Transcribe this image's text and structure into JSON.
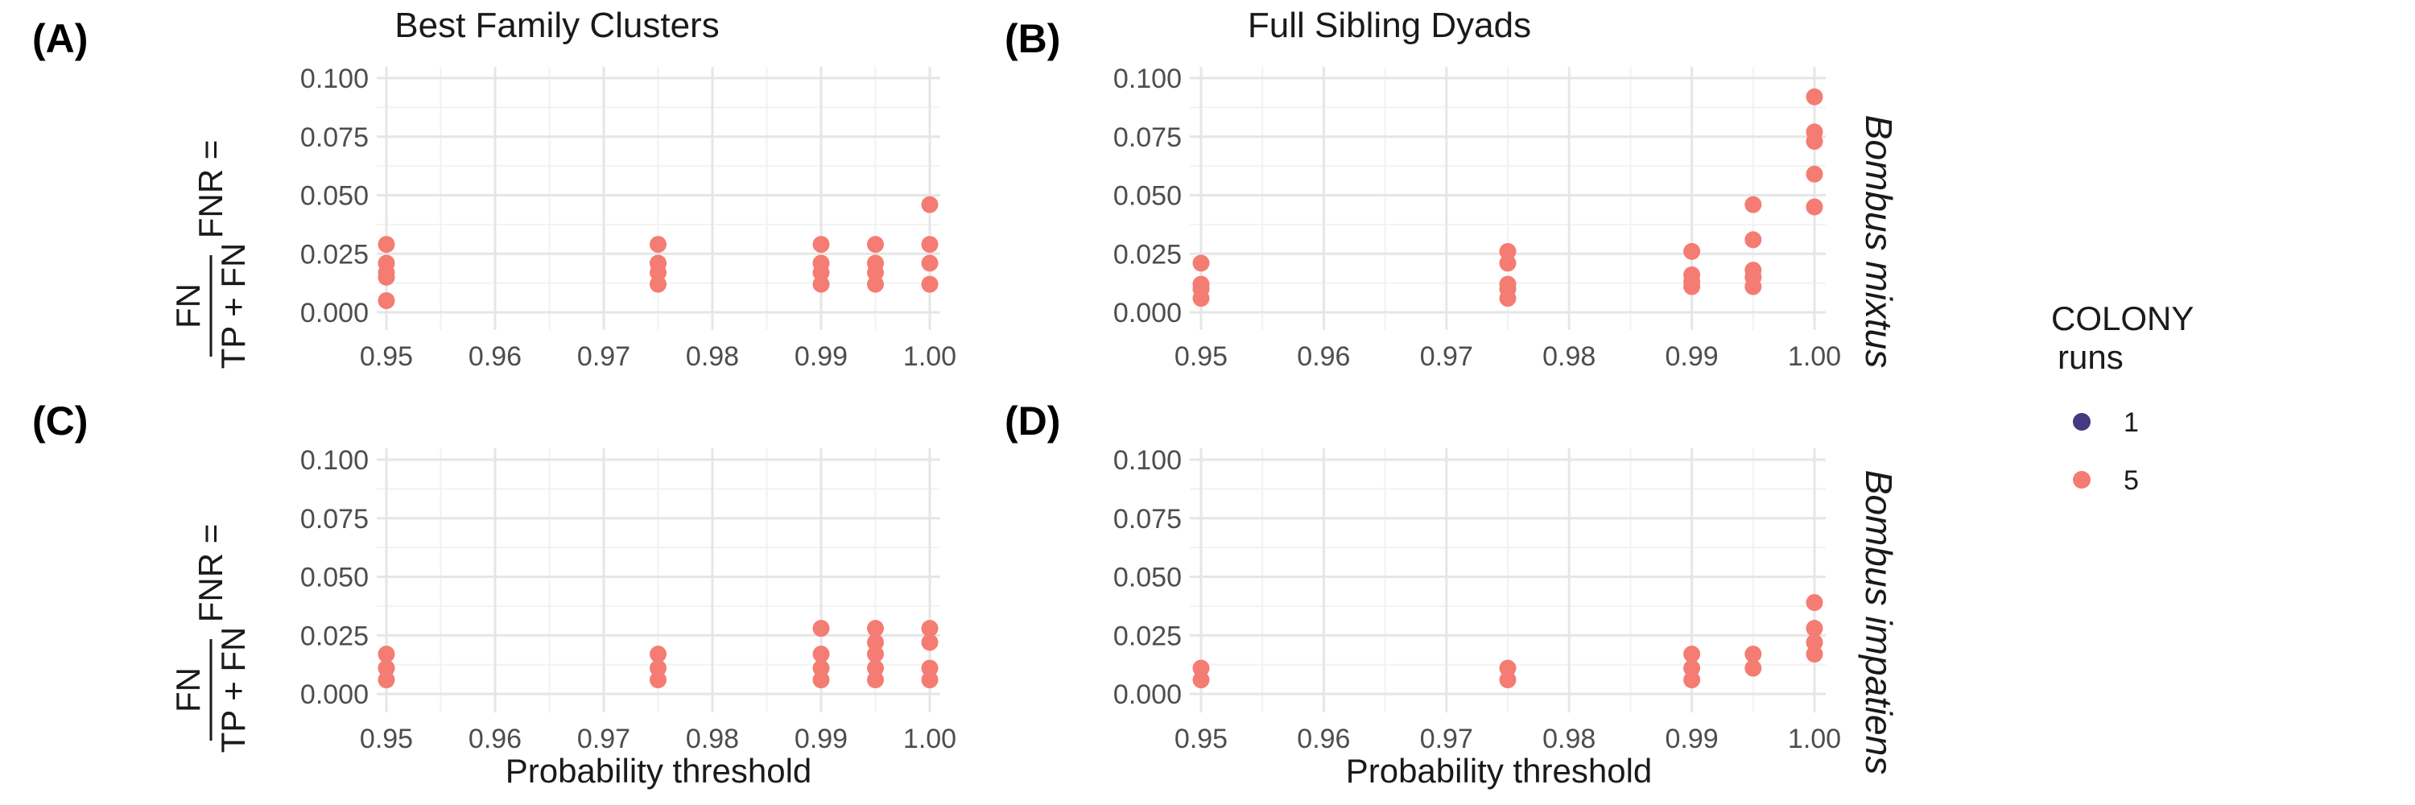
{
  "columns": {
    "left": "Best Family Clusters",
    "right": "Full Sibling Dyads"
  },
  "rows": {
    "top": "Bombus mixtus",
    "bottom": "Bombus impatiens"
  },
  "y_axis": {
    "prefix": "FNR =",
    "numerator": "FN",
    "denominator": "TP + FN"
  },
  "x_axis_title": "Probability threshold",
  "legend": {
    "title_line1": "COLONY",
    "title_line2": "runs",
    "items": [
      {
        "label": "1",
        "color": "#45397f"
      },
      {
        "label": "5",
        "color": "#f47c72"
      }
    ]
  },
  "chart_data": [
    {
      "panel": "(A)",
      "type": "scatter",
      "title": "Best Family Clusters",
      "facet": "Bombus mixtus",
      "xlabel": "",
      "ylabel": "FNR = FN / (TP + FN)",
      "xlim": [
        0.95,
        1.0
      ],
      "ylim": [
        0.0,
        0.1
      ],
      "xticks": [
        "0.95",
        "0.96",
        "0.97",
        "0.98",
        "0.99",
        "1.00"
      ],
      "yticks": [
        "0.000",
        "0.025",
        "0.050",
        "0.075",
        "0.100"
      ],
      "series": [
        {
          "name": "1",
          "color": "#45397f",
          "points": []
        },
        {
          "name": "5",
          "color": "#f47c72",
          "points": [
            [
              0.95,
              0.029
            ],
            [
              0.95,
              0.021
            ],
            [
              0.95,
              0.017
            ],
            [
              0.95,
              0.015
            ],
            [
              0.95,
              0.005
            ],
            [
              0.975,
              0.029
            ],
            [
              0.975,
              0.021
            ],
            [
              0.975,
              0.017
            ],
            [
              0.975,
              0.012
            ],
            [
              0.99,
              0.029
            ],
            [
              0.99,
              0.021
            ],
            [
              0.99,
              0.017
            ],
            [
              0.99,
              0.012
            ],
            [
              0.995,
              0.029
            ],
            [
              0.995,
              0.021
            ],
            [
              0.995,
              0.017
            ],
            [
              0.995,
              0.012
            ],
            [
              1.0,
              0.046
            ],
            [
              1.0,
              0.029
            ],
            [
              1.0,
              0.021
            ],
            [
              1.0,
              0.012
            ]
          ]
        }
      ]
    },
    {
      "panel": "(B)",
      "type": "scatter",
      "title": "Full Sibling Dyads",
      "facet": "Bombus mixtus",
      "xlabel": "",
      "ylabel": "",
      "xlim": [
        0.95,
        1.0
      ],
      "ylim": [
        0.0,
        0.1
      ],
      "xticks": [
        "0.95",
        "0.96",
        "0.97",
        "0.98",
        "0.99",
        "1.00"
      ],
      "yticks": [
        "0.000",
        "0.025",
        "0.050",
        "0.075",
        "0.100"
      ],
      "series": [
        {
          "name": "1",
          "color": "#45397f",
          "points": []
        },
        {
          "name": "5",
          "color": "#f47c72",
          "points": [
            [
              0.95,
              0.021
            ],
            [
              0.95,
              0.012
            ],
            [
              0.95,
              0.01
            ],
            [
              0.95,
              0.006
            ],
            [
              0.975,
              0.026
            ],
            [
              0.975,
              0.021
            ],
            [
              0.975,
              0.012
            ],
            [
              0.975,
              0.01
            ],
            [
              0.975,
              0.006
            ],
            [
              0.99,
              0.026
            ],
            [
              0.99,
              0.016
            ],
            [
              0.99,
              0.013
            ],
            [
              0.99,
              0.011
            ],
            [
              0.995,
              0.046
            ],
            [
              0.995,
              0.031
            ],
            [
              0.995,
              0.018
            ],
            [
              0.995,
              0.015
            ],
            [
              0.995,
              0.011
            ],
            [
              1.0,
              0.092
            ],
            [
              1.0,
              0.077
            ],
            [
              1.0,
              0.073
            ],
            [
              1.0,
              0.059
            ],
            [
              1.0,
              0.045
            ]
          ]
        }
      ]
    },
    {
      "panel": "(C)",
      "type": "scatter",
      "title": "",
      "facet": "Bombus impatiens",
      "xlabel": "Probability threshold",
      "ylabel": "FNR = FN / (TP + FN)",
      "xlim": [
        0.95,
        1.0
      ],
      "ylim": [
        0.0,
        0.1
      ],
      "xticks": [
        "0.95",
        "0.96",
        "0.97",
        "0.98",
        "0.99",
        "1.00"
      ],
      "yticks": [
        "0.000",
        "0.025",
        "0.050",
        "0.075",
        "0.100"
      ],
      "series": [
        {
          "name": "1",
          "color": "#45397f",
          "points": []
        },
        {
          "name": "5",
          "color": "#f47c72",
          "points": [
            [
              0.95,
              0.017
            ],
            [
              0.95,
              0.011
            ],
            [
              0.95,
              0.006
            ],
            [
              0.975,
              0.017
            ],
            [
              0.975,
              0.011
            ],
            [
              0.975,
              0.006
            ],
            [
              0.99,
              0.028
            ],
            [
              0.99,
              0.017
            ],
            [
              0.99,
              0.011
            ],
            [
              0.99,
              0.006
            ],
            [
              0.995,
              0.028
            ],
            [
              0.995,
              0.022
            ],
            [
              0.995,
              0.017
            ],
            [
              0.995,
              0.011
            ],
            [
              0.995,
              0.006
            ],
            [
              1.0,
              0.028
            ],
            [
              1.0,
              0.022
            ],
            [
              1.0,
              0.011
            ],
            [
              1.0,
              0.006
            ]
          ]
        }
      ]
    },
    {
      "panel": "(D)",
      "type": "scatter",
      "title": "",
      "facet": "Bombus impatiens",
      "xlabel": "Probability threshold",
      "ylabel": "",
      "xlim": [
        0.95,
        1.0
      ],
      "ylim": [
        0.0,
        0.1
      ],
      "xticks": [
        "0.95",
        "0.96",
        "0.97",
        "0.98",
        "0.99",
        "1.00"
      ],
      "yticks": [
        "0.000",
        "0.025",
        "0.050",
        "0.075",
        "0.100"
      ],
      "series": [
        {
          "name": "1",
          "color": "#45397f",
          "points": []
        },
        {
          "name": "5",
          "color": "#f47c72",
          "points": [
            [
              0.95,
              0.011
            ],
            [
              0.95,
              0.006
            ],
            [
              0.975,
              0.011
            ],
            [
              0.975,
              0.006
            ],
            [
              0.99,
              0.017
            ],
            [
              0.99,
              0.011
            ],
            [
              0.99,
              0.006
            ],
            [
              0.995,
              0.017
            ],
            [
              0.995,
              0.011
            ],
            [
              1.0,
              0.039
            ],
            [
              1.0,
              0.028
            ],
            [
              1.0,
              0.022
            ],
            [
              1.0,
              0.017
            ]
          ]
        }
      ]
    }
  ]
}
